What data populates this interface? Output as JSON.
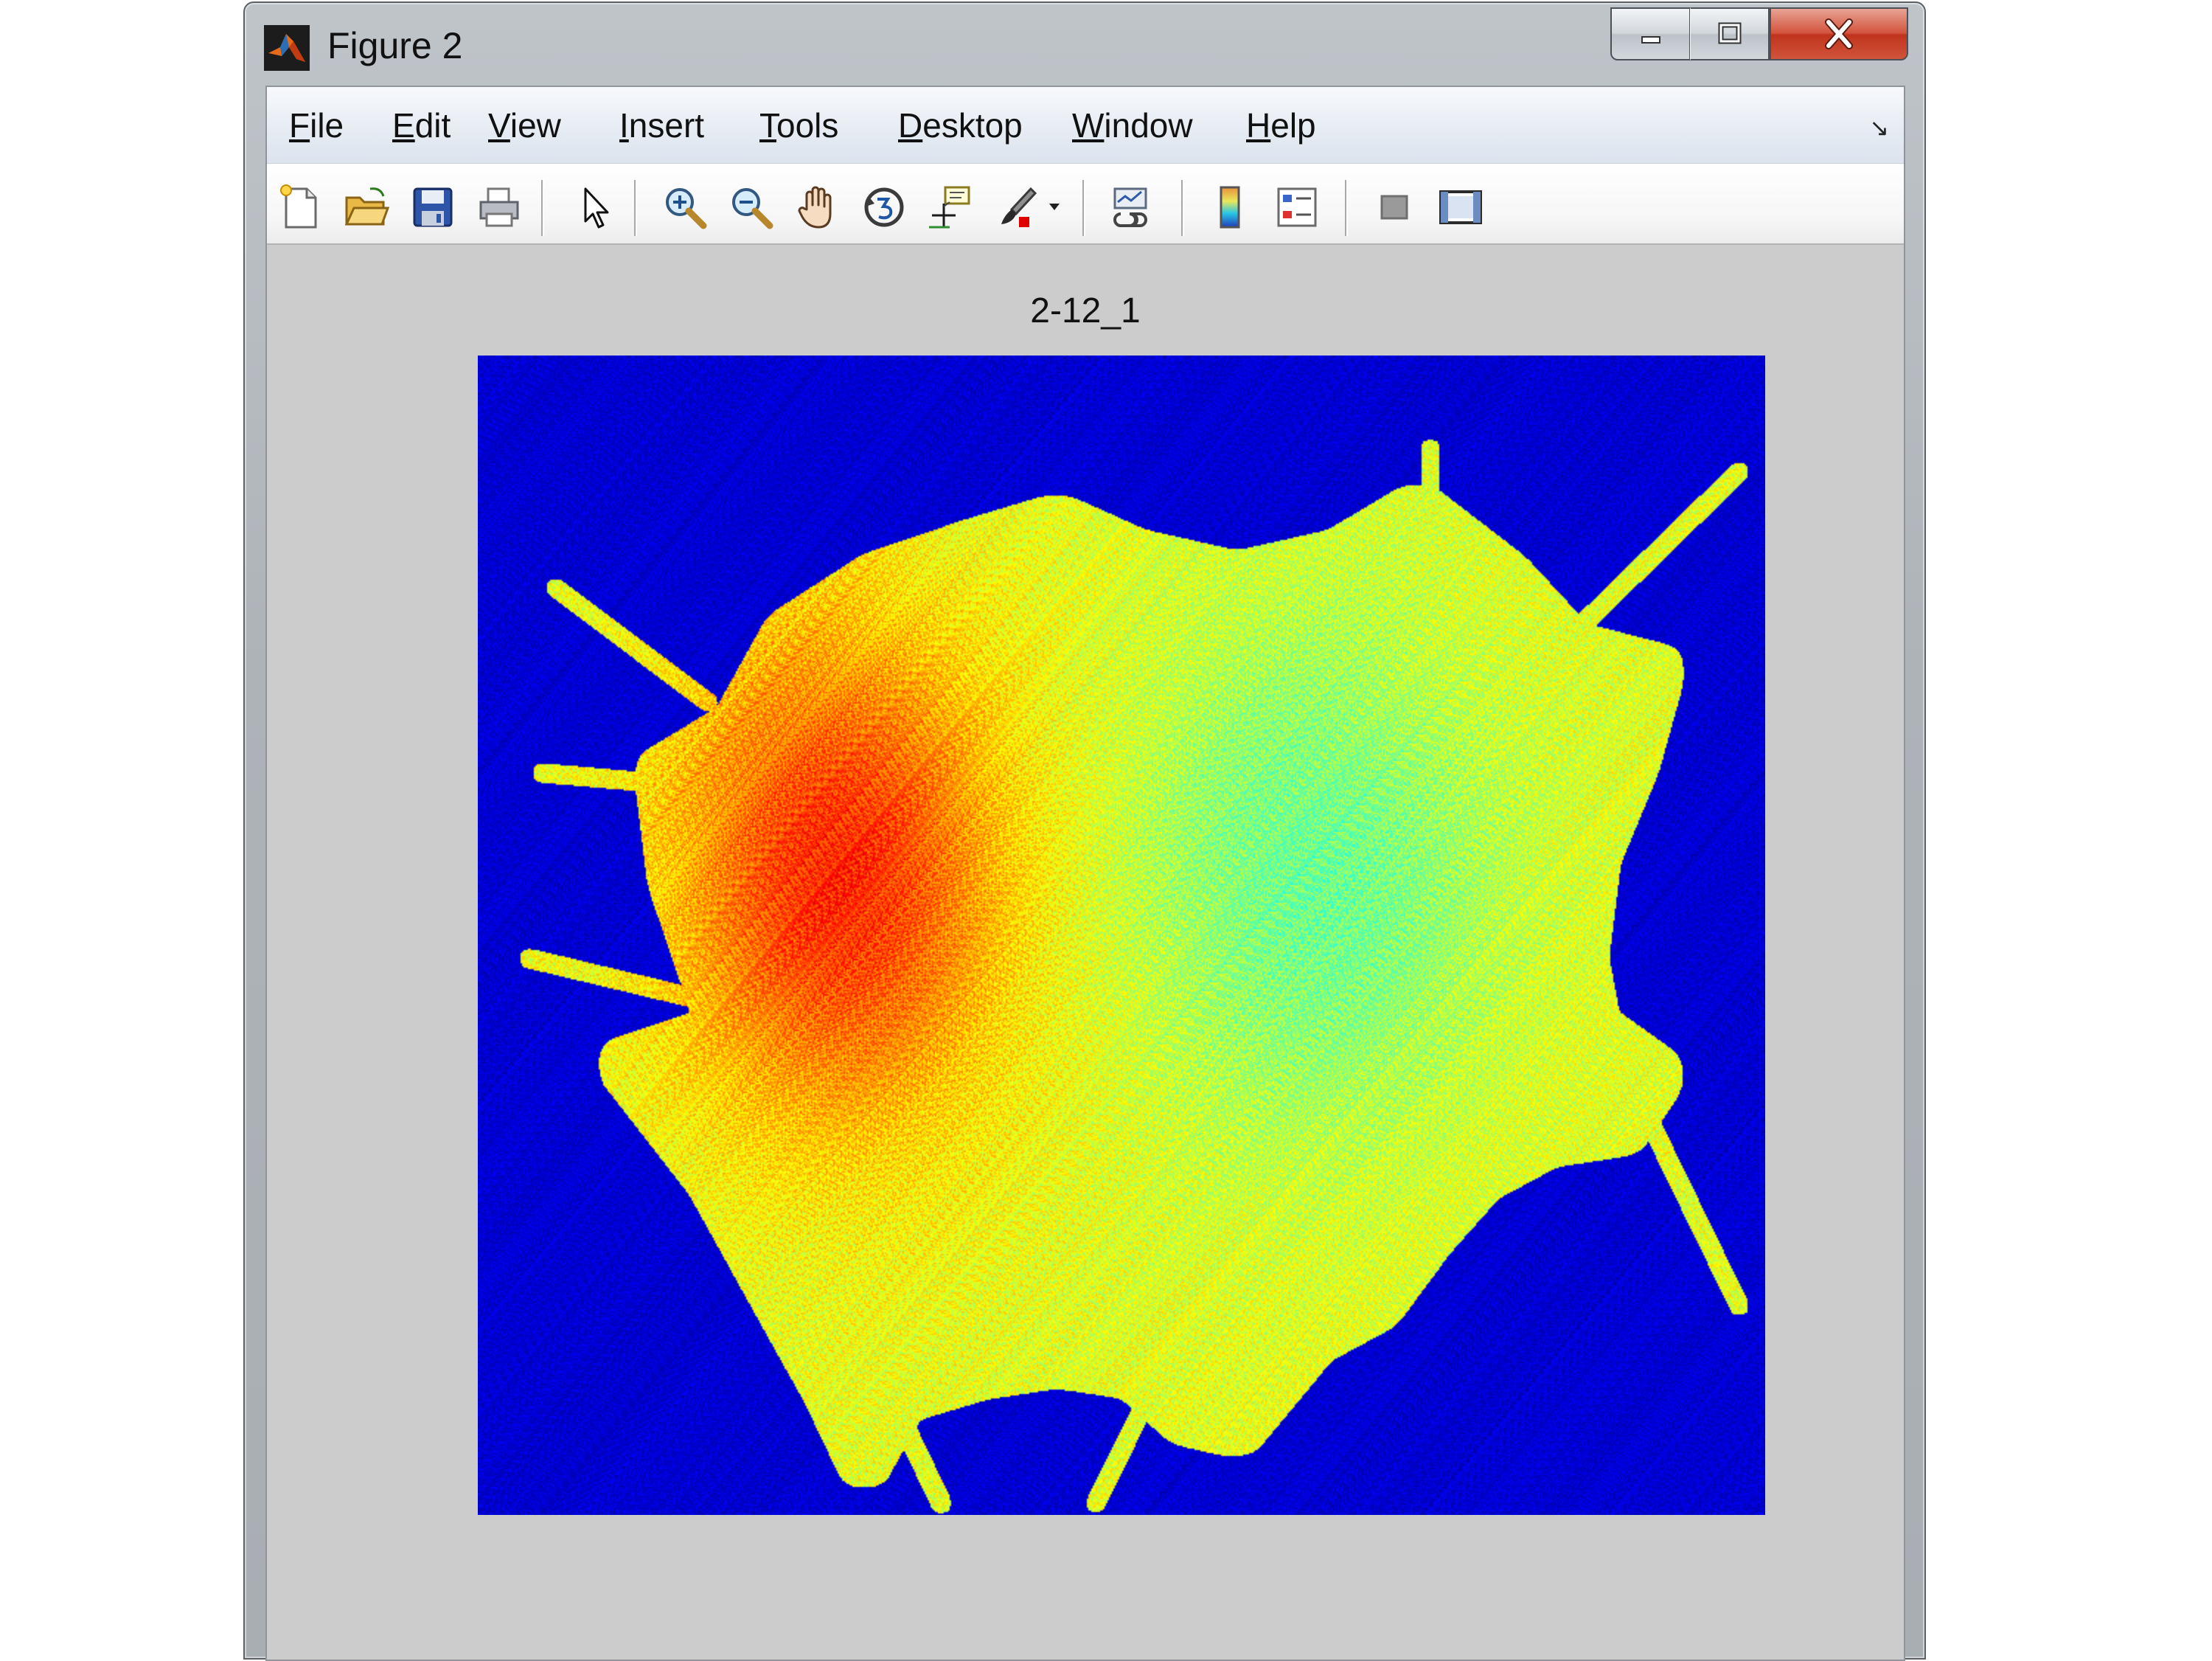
{
  "window": {
    "title": "Figure 2",
    "app_icon": "matlab-logo-icon",
    "caption_buttons": [
      "minimize-icon",
      "maximize-icon",
      "close-icon"
    ]
  },
  "menubar": {
    "items": [
      {
        "pre": "",
        "key": "F",
        "post": "ile"
      },
      {
        "pre": "",
        "key": "E",
        "post": "dit"
      },
      {
        "pre": "",
        "key": "V",
        "post": "iew"
      },
      {
        "pre": "",
        "key": "I",
        "post": "nsert"
      },
      {
        "pre": "",
        "key": "T",
        "post": "ools"
      },
      {
        "pre": "",
        "key": "D",
        "post": "esktop"
      },
      {
        "pre": "",
        "key": "W",
        "post": "indow"
      },
      {
        "pre": "",
        "key": "H",
        "post": "elp"
      }
    ],
    "dock_glyph": "↘"
  },
  "toolbar": {
    "icons": [
      "new-figure-icon",
      "open-file-icon",
      "save-figure-icon",
      "print-figure-icon",
      "edit-plot-cursor-icon",
      "zoom-in-icon",
      "zoom-out-icon",
      "pan-hand-icon",
      "rotate-3d-icon",
      "data-cursor-icon",
      "brush-icon",
      "link-plot-icon",
      "insert-colorbar-icon",
      "insert-legend-icon",
      "hide-plot-tools-icon",
      "show-plot-tools-icon"
    ]
  },
  "figure": {
    "title": "2-12_1",
    "colormap": "jet",
    "colors": {
      "background": "#00008f",
      "edge": "#00c8ff",
      "body": "#a8f062",
      "hot": "#ff6000"
    }
  }
}
